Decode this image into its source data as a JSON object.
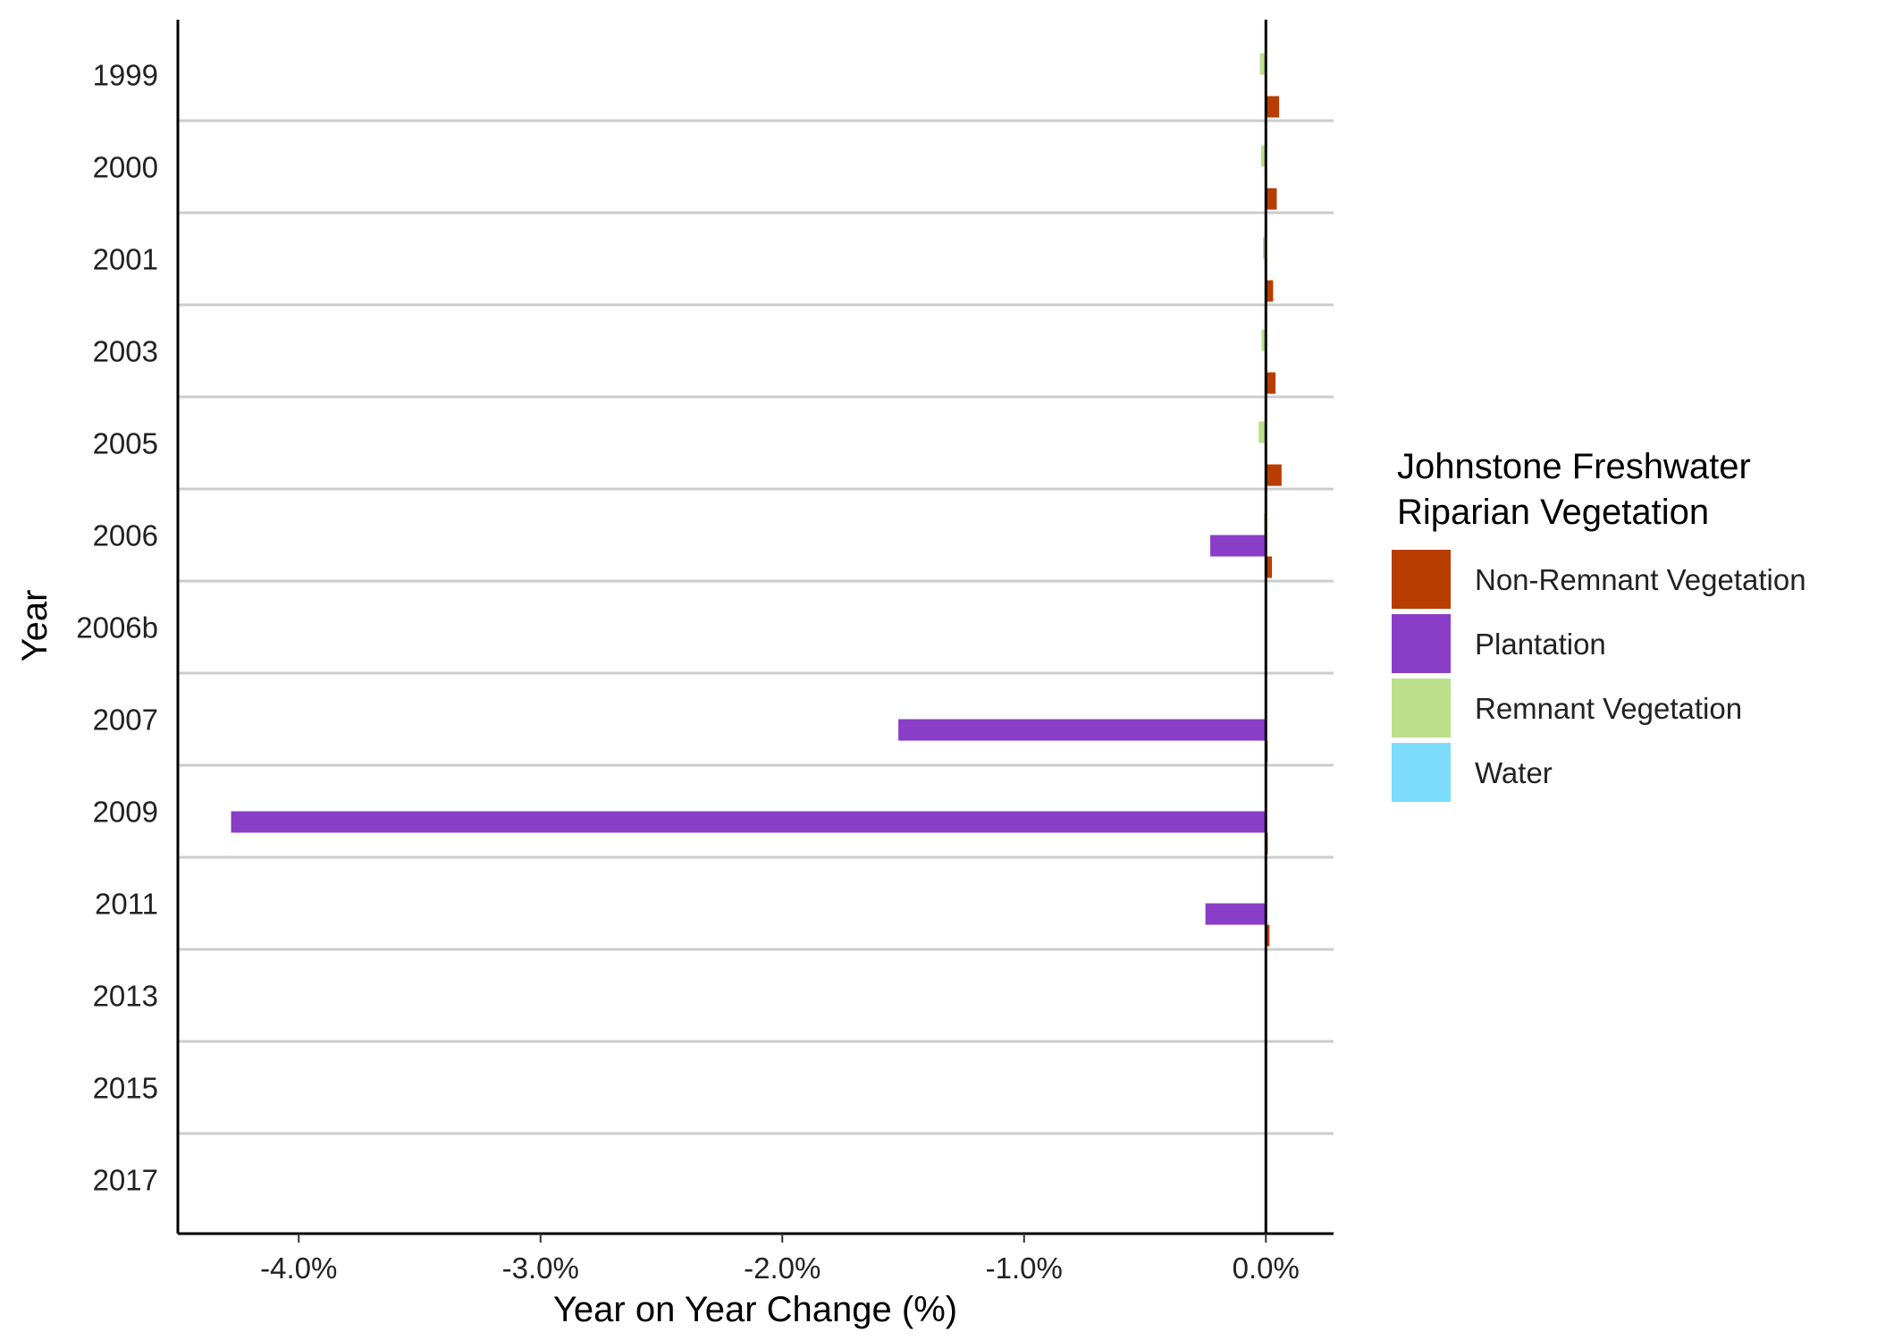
{
  "chart_data": {
    "type": "bar",
    "orientation": "horizontal",
    "title": "",
    "xlabel": "Year on Year Change (%)",
    "ylabel": "Year",
    "xlim": [
      -4.5,
      0.28
    ],
    "x_ticks": [
      -4.0,
      -3.0,
      -2.0,
      -1.0,
      0.0
    ],
    "x_tick_labels": [
      "-4.0%",
      "-3.0%",
      "-2.0%",
      "-1.0%",
      "0.0%"
    ],
    "categories": [
      "1999",
      "2000",
      "2001",
      "2003",
      "2005",
      "2006",
      "2006b",
      "2007",
      "2009",
      "2011",
      "2013",
      "2015",
      "2017"
    ],
    "grid": "horizontal separators between years",
    "legend": {
      "position": "right",
      "title_line1": "Johnstone Freshwater",
      "title_line2": "Riparian Vegetation"
    },
    "series": [
      {
        "name": "Non-Remnant Vegetation",
        "color": "#b83d00",
        "values": [
          0.055,
          0.045,
          0.03,
          0.04,
          0.065,
          0.025,
          0.0,
          0.005,
          0.008,
          0.015,
          0.0,
          0.0,
          0.0
        ]
      },
      {
        "name": "Plantation",
        "color": "#8a3ec7",
        "values": [
          0.0,
          0.0,
          0.0,
          0.0,
          0.0,
          -0.23,
          0.0,
          -1.52,
          -4.28,
          -0.25,
          0.0,
          0.0,
          0.0
        ]
      },
      {
        "name": "Remnant Vegetation",
        "color": "#bde08c",
        "values": [
          -0.025,
          -0.02,
          -0.012,
          -0.018,
          -0.03,
          -0.008,
          0.0,
          0.0,
          0.0,
          0.0,
          0.0,
          0.0,
          0.0
        ]
      },
      {
        "name": "Water",
        "color": "#7ddcfc",
        "values": [
          0.0,
          0.0,
          0.0,
          0.0,
          0.0,
          0.0,
          0.0,
          0.0,
          0.0,
          0.0,
          0.0,
          0.0,
          0.0
        ]
      }
    ]
  }
}
